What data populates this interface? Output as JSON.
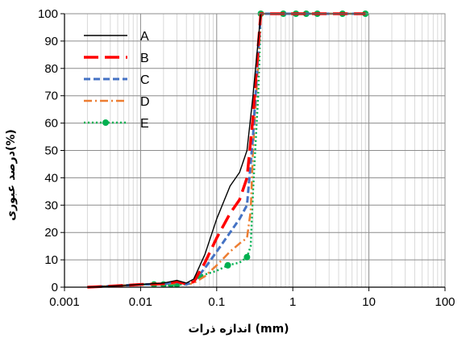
{
  "chart_data": {
    "type": "line",
    "xlabel": "اندازه ذرات  (mm)",
    "ylabel": "درصد عبوری(%)",
    "x_scale": "log",
    "xlim": [
      0.001,
      100
    ],
    "ylim": [
      0,
      100
    ],
    "x_ticks": [
      0.001,
      0.01,
      0.1,
      1,
      10,
      100
    ],
    "x_tick_labels": [
      "0.001",
      "0.01",
      "0.1",
      "1",
      "10",
      "100"
    ],
    "y_ticks": [
      0,
      10,
      20,
      30,
      40,
      50,
      60,
      70,
      80,
      90,
      100
    ],
    "y_tick_labels": [
      "0",
      "10",
      "20",
      "30",
      "40",
      "50",
      "60",
      "70",
      "80",
      "90",
      "100"
    ],
    "grid": true,
    "legend_position": "top-left",
    "series": [
      {
        "name": "A",
        "color": "#000000",
        "dash": "solid",
        "marker": "none",
        "x": [
          0.002,
          0.005,
          0.01,
          0.02,
          0.03,
          0.04,
          0.05,
          0.07,
          0.1,
          0.15,
          0.2,
          0.25,
          0.3,
          0.35,
          0.38,
          0.5,
          1,
          2,
          5,
          9
        ],
        "y": [
          0,
          0.5,
          1,
          1.5,
          2.5,
          1.5,
          3,
          12,
          25,
          37,
          42,
          50,
          70,
          90,
          100,
          100,
          100,
          100,
          100,
          100
        ]
      },
      {
        "name": "B",
        "color": "#ff0000",
        "dash": "long-dash",
        "marker": "none",
        "x": [
          0.002,
          0.005,
          0.01,
          0.02,
          0.03,
          0.04,
          0.05,
          0.07,
          0.1,
          0.15,
          0.2,
          0.25,
          0.3,
          0.35,
          0.38,
          0.5,
          1,
          2,
          5,
          9
        ],
        "y": [
          0,
          0.5,
          1,
          1.2,
          2,
          1.2,
          2,
          9,
          18,
          27,
          32,
          40,
          62,
          88,
          100,
          100,
          100,
          100,
          100,
          100
        ]
      },
      {
        "name": "C",
        "color": "#4472c4",
        "dash": "dash",
        "marker": "none",
        "x": [
          0.002,
          0.005,
          0.01,
          0.02,
          0.03,
          0.04,
          0.05,
          0.07,
          0.1,
          0.15,
          0.2,
          0.25,
          0.3,
          0.35,
          0.38,
          0.5,
          1,
          2,
          5,
          9
        ],
        "y": [
          0,
          0.5,
          1,
          1.2,
          1.8,
          1,
          2,
          7,
          13,
          20,
          25,
          30,
          55,
          85,
          100,
          100,
          100,
          100,
          100,
          100
        ]
      },
      {
        "name": "D",
        "color": "#ed7d31",
        "dash": "dash-dot",
        "marker": "none",
        "x": [
          0.002,
          0.005,
          0.01,
          0.02,
          0.03,
          0.04,
          0.05,
          0.07,
          0.1,
          0.15,
          0.2,
          0.25,
          0.28,
          0.3,
          0.35,
          0.38,
          0.5,
          1,
          2,
          5,
          9
        ],
        "y": [
          0,
          0.5,
          1,
          1,
          1.5,
          1,
          1.5,
          4,
          8,
          13,
          16,
          18,
          28,
          50,
          82,
          100,
          100,
          100,
          100,
          100,
          100
        ]
      },
      {
        "name": "E",
        "color": "#00b050",
        "dash": "dot",
        "marker": "circle",
        "x": [
          0.002,
          0.005,
          0.01,
          0.015,
          0.02,
          0.025,
          0.03,
          0.04,
          0.06,
          0.1,
          0.14,
          0.2,
          0.25,
          0.28,
          0.3,
          0.35,
          0.38,
          0.55,
          0.75,
          1.1,
          1.5,
          2.1,
          3,
          4.5,
          9
        ],
        "y": [
          0,
          0.5,
          1,
          1,
          1,
          1,
          1,
          1,
          4,
          6,
          8,
          9,
          11,
          15,
          35,
          70,
          100,
          100,
          100,
          100,
          100,
          100,
          100,
          100,
          100
        ],
        "marker_x": [
          0.015,
          0.02,
          0.025,
          0.03,
          0.06,
          0.14,
          0.25,
          0.38,
          0.75,
          1.1,
          1.5,
          2.1,
          4.5,
          9
        ],
        "marker_y": [
          1,
          1,
          1,
          1,
          4,
          8,
          11,
          100,
          100,
          100,
          100,
          100,
          100,
          100
        ]
      }
    ]
  }
}
